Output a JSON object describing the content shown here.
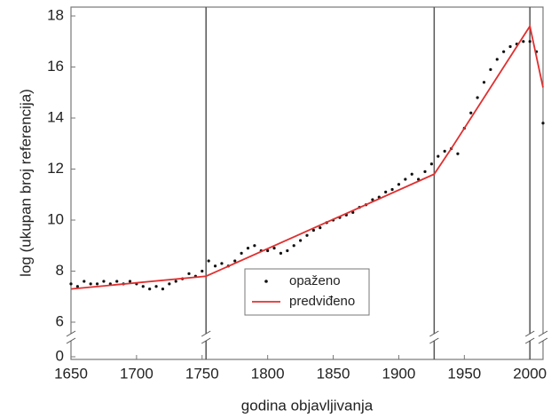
{
  "chart_data": {
    "type": "scatter",
    "ylabel": "log (ukupan broj referencija)",
    "xlabel": "godina objavljivanja",
    "xlim": [
      1650,
      2010
    ],
    "xticks": [
      1650,
      1700,
      1750,
      1800,
      1850,
      1900,
      1950,
      2000
    ],
    "ylim": [
      0,
      18
    ],
    "yticks": [
      0,
      6,
      8,
      10,
      12,
      14,
      16,
      18
    ],
    "y_break": [
      0,
      6
    ],
    "vlines": [
      1753,
      1927,
      2000
    ],
    "legend": "center-bottom",
    "series": [
      {
        "name": "opaženo",
        "color": "#111111",
        "kind": "points",
        "x": [
          1650,
          1655,
          1660,
          1665,
          1670,
          1675,
          1680,
          1685,
          1690,
          1695,
          1700,
          1705,
          1710,
          1715,
          1720,
          1725,
          1730,
          1735,
          1740,
          1745,
          1750,
          1755,
          1760,
          1765,
          1770,
          1775,
          1780,
          1785,
          1790,
          1795,
          1800,
          1805,
          1810,
          1815,
          1820,
          1825,
          1830,
          1835,
          1840,
          1845,
          1850,
          1855,
          1860,
          1865,
          1870,
          1875,
          1880,
          1885,
          1890,
          1895,
          1900,
          1905,
          1910,
          1915,
          1920,
          1925,
          1930,
          1935,
          1940,
          1945,
          1950,
          1955,
          1960,
          1965,
          1970,
          1975,
          1980,
          1985,
          1990,
          1995,
          2000,
          2005,
          2010
        ],
        "values": [
          7.5,
          7.4,
          7.6,
          7.5,
          7.5,
          7.6,
          7.5,
          7.6,
          7.5,
          7.6,
          7.5,
          7.4,
          7.3,
          7.4,
          7.3,
          7.5,
          7.6,
          7.7,
          7.9,
          7.8,
          8.0,
          8.4,
          8.2,
          8.3,
          8.2,
          8.4,
          8.7,
          8.9,
          9.0,
          8.8,
          8.8,
          8.9,
          8.7,
          8.8,
          9.0,
          9.2,
          9.4,
          9.6,
          9.7,
          9.9,
          10.0,
          10.1,
          10.2,
          10.3,
          10.5,
          10.6,
          10.8,
          10.9,
          11.1,
          11.2,
          11.4,
          11.6,
          11.8,
          11.6,
          11.9,
          12.2,
          12.5,
          12.7,
          12.8,
          12.6,
          13.6,
          14.2,
          14.8,
          15.4,
          15.9,
          16.3,
          16.6,
          16.8,
          16.9,
          17.0,
          17.0,
          16.6,
          13.8
        ]
      },
      {
        "name": "predviđeno",
        "color": "#e03030",
        "kind": "line",
        "x": [
          1650,
          1753,
          1927,
          1940,
          2000,
          2010
        ],
        "values": [
          7.3,
          7.8,
          11.8,
          12.8,
          17.6,
          15.2
        ]
      }
    ]
  }
}
